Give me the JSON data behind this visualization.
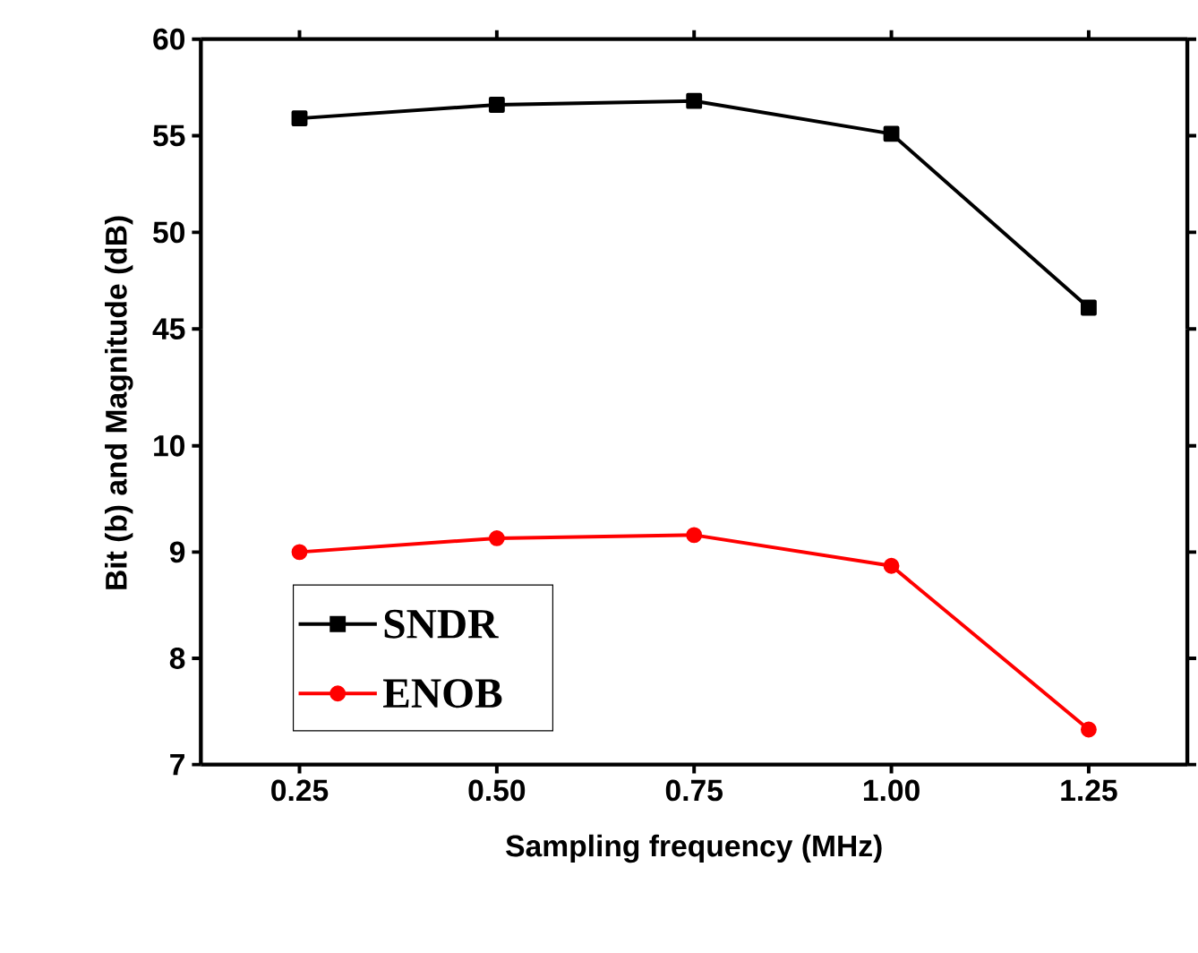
{
  "chart_data": [
    {
      "type": "line",
      "x": [
        0.25,
        0.5,
        0.75,
        1.0,
        1.25
      ],
      "xlim": [
        0.125,
        1.375
      ],
      "xticks": [
        0.25,
        0.5,
        0.75,
        1.0,
        1.25
      ],
      "ylim": [
        45,
        60
      ],
      "yticks": [
        45,
        50,
        55,
        60
      ],
      "tick_labels": "y",
      "marker": "square",
      "line_style": "solid",
      "legend": "bottom left",
      "series": [
        {
          "name": "SNDR",
          "color": "#000000",
          "values": [
            55.9,
            56.6,
            56.8,
            55.1,
            46.1
          ]
        }
      ]
    },
    {
      "type": "line",
      "x": [
        0.25,
        0.5,
        0.75,
        1.0,
        1.25
      ],
      "xlim": [
        0.125,
        1.375
      ],
      "xticks": [
        {
          "value": 0.25,
          "label": "0.25"
        },
        {
          "value": 0.5,
          "label": "0.50"
        },
        {
          "value": 0.75,
          "label": "0.75"
        },
        {
          "value": 1.0,
          "label": "1.00"
        },
        {
          "value": 1.25,
          "label": "1.25"
        }
      ],
      "ylim": [
        7,
        11.1
      ],
      "yticks": [
        7,
        8,
        9,
        10
      ],
      "xlabel": "Sampling frequency (MHz)",
      "ylabel": "Bit (b) and Magnitude (dB)",
      "marker": "circle",
      "line_style": "solid",
      "legend": "bottom left",
      "series": [
        {
          "name": "ENOB",
          "color": "#ff0000",
          "values": [
            9.0,
            9.13,
            9.16,
            8.87,
            7.33
          ]
        }
      ]
    }
  ]
}
